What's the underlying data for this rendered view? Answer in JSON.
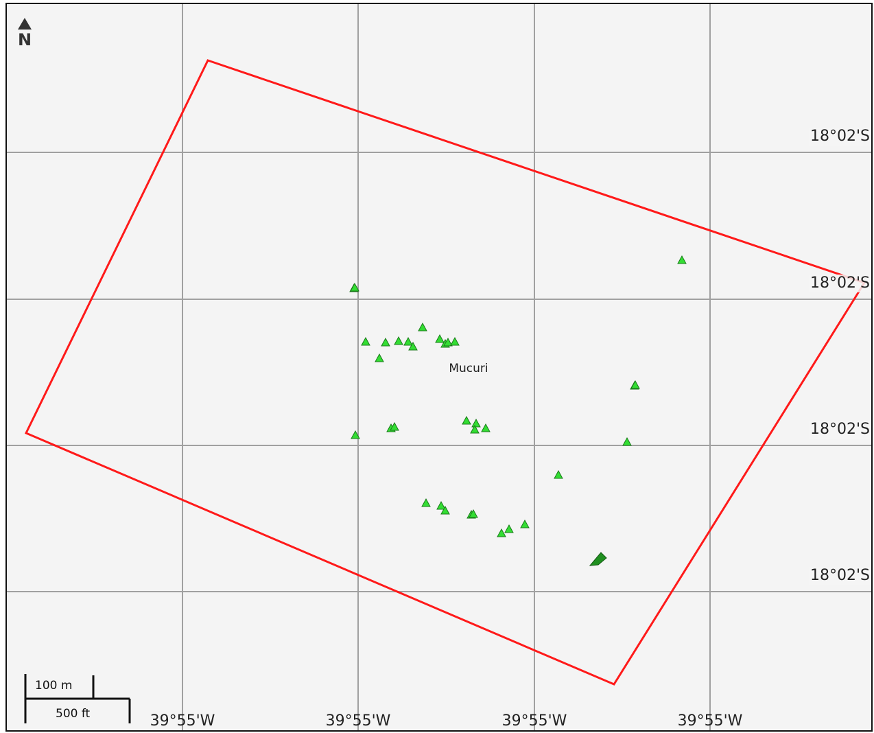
{
  "map": {
    "place_label": "Mucuri",
    "north_label": "N",
    "lat_labels": [
      "18°02'S",
      "18°02'S",
      "18°02'S",
      "18°02'S"
    ],
    "lon_labels": [
      "39°55'W",
      "39°55'W",
      "39°55'W",
      "39°55'W"
    ],
    "scale": {
      "metric": "100 m",
      "imperial": "500 ft"
    },
    "colors": {
      "background": "#f4f4f4",
      "grid": "#a0a0a0",
      "boundary": "#ff1a1a",
      "marker_fill": "#33dd33",
      "marker_stroke": "#1a7a1a",
      "ship": "#1f8f1f"
    },
    "marker_icon": "green-triangle-icon",
    "ship_icon": "ship-icon"
  }
}
